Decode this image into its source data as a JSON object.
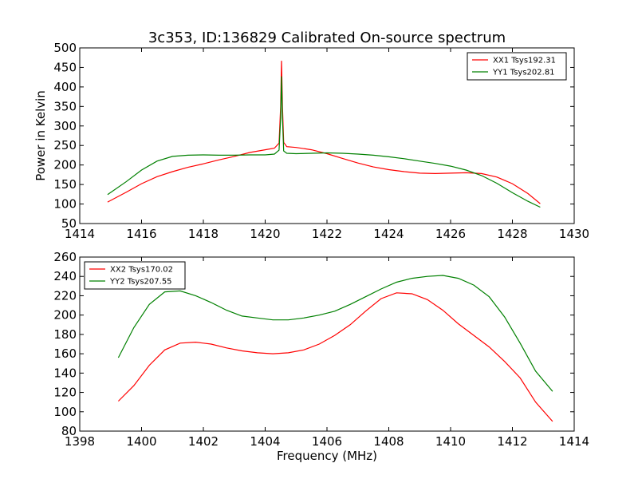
{
  "title": "3c353, ID:136829 Calibrated On-source spectrum",
  "ylabel": "Power in Kelvin",
  "xlabel": "Frequency (MHz)",
  "chart_data": [
    {
      "type": "line",
      "title": "3c353, ID:136829 Calibrated On-source spectrum",
      "xlabel": "",
      "ylabel": "Power in Kelvin",
      "xlim": [
        1414,
        1430
      ],
      "ylim": [
        50,
        500
      ],
      "xticks": [
        1414,
        1416,
        1418,
        1420,
        1422,
        1424,
        1426,
        1428,
        1430
      ],
      "yticks": [
        50,
        100,
        150,
        200,
        250,
        300,
        350,
        400,
        450,
        500
      ],
      "grid": false,
      "legend_position": "top-right",
      "series": [
        {
          "name": "XX1 Tsys192.31",
          "color": "#ff0000",
          "points": [
            [
              1414.9,
              105
            ],
            [
              1415.5,
              130
            ],
            [
              1416.0,
              152
            ],
            [
              1416.5,
              170
            ],
            [
              1417.0,
              183
            ],
            [
              1417.5,
              194
            ],
            [
              1418.0,
              203
            ],
            [
              1418.5,
              213
            ],
            [
              1419.0,
              222
            ],
            [
              1419.5,
              232
            ],
            [
              1420.0,
              239
            ],
            [
              1420.3,
              243
            ],
            [
              1420.45,
              256
            ],
            [
              1420.5,
              350
            ],
            [
              1420.53,
              467
            ],
            [
              1420.56,
              350
            ],
            [
              1420.6,
              258
            ],
            [
              1420.7,
              247
            ],
            [
              1421.0,
              245
            ],
            [
              1421.5,
              239
            ],
            [
              1422.0,
              229
            ],
            [
              1422.5,
              217
            ],
            [
              1423.0,
              205
            ],
            [
              1423.5,
              195
            ],
            [
              1424.0,
              188
            ],
            [
              1424.5,
              183
            ],
            [
              1425.0,
              179
            ],
            [
              1425.5,
              178
            ],
            [
              1426.0,
              179
            ],
            [
              1426.5,
              180
            ],
            [
              1427.0,
              178
            ],
            [
              1427.5,
              169
            ],
            [
              1428.0,
              152
            ],
            [
              1428.5,
              127
            ],
            [
              1428.9,
              101
            ]
          ]
        },
        {
          "name": "YY1 Tsys202.81",
          "color": "#008000",
          "points": [
            [
              1414.9,
              124
            ],
            [
              1415.5,
              157
            ],
            [
              1416.0,
              187
            ],
            [
              1416.5,
              210
            ],
            [
              1417.0,
              222
            ],
            [
              1417.5,
              225
            ],
            [
              1418.0,
              226
            ],
            [
              1418.5,
              225
            ],
            [
              1419.0,
              225
            ],
            [
              1419.5,
              226
            ],
            [
              1420.0,
              226
            ],
            [
              1420.3,
              228
            ],
            [
              1420.45,
              238
            ],
            [
              1420.5,
              320
            ],
            [
              1420.53,
              427
            ],
            [
              1420.56,
              320
            ],
            [
              1420.6,
              236
            ],
            [
              1420.7,
              230
            ],
            [
              1421.0,
              229
            ],
            [
              1421.5,
              230
            ],
            [
              1422.0,
              231
            ],
            [
              1422.5,
              230
            ],
            [
              1423.0,
              228
            ],
            [
              1423.5,
              225
            ],
            [
              1424.0,
              221
            ],
            [
              1424.5,
              216
            ],
            [
              1425.0,
              210
            ],
            [
              1425.5,
              204
            ],
            [
              1426.0,
              197
            ],
            [
              1426.5,
              187
            ],
            [
              1427.0,
              173
            ],
            [
              1427.5,
              153
            ],
            [
              1428.0,
              129
            ],
            [
              1428.5,
              107
            ],
            [
              1428.9,
              92
            ]
          ]
        }
      ]
    },
    {
      "type": "line",
      "title": "",
      "xlabel": "Frequency (MHz)",
      "ylabel": "",
      "xlim": [
        1398,
        1414
      ],
      "ylim": [
        80,
        260
      ],
      "xticks": [
        1398,
        1400,
        1402,
        1404,
        1406,
        1408,
        1410,
        1412,
        1414
      ],
      "yticks": [
        80,
        100,
        120,
        140,
        160,
        180,
        200,
        220,
        240,
        260
      ],
      "grid": false,
      "legend_position": "top-left",
      "series": [
        {
          "name": "XX2 Tsys170.02",
          "color": "#ff0000",
          "points": [
            [
              1399.25,
              111
            ],
            [
              1399.75,
              127
            ],
            [
              1400.25,
              148
            ],
            [
              1400.75,
              164
            ],
            [
              1401.25,
              171
            ],
            [
              1401.75,
              172
            ],
            [
              1402.25,
              170
            ],
            [
              1402.75,
              166
            ],
            [
              1403.25,
              163
            ],
            [
              1403.75,
              161
            ],
            [
              1404.25,
              160
            ],
            [
              1404.75,
              161
            ],
            [
              1405.25,
              164
            ],
            [
              1405.75,
              170
            ],
            [
              1406.25,
              179
            ],
            [
              1406.75,
              190
            ],
            [
              1407.25,
              204
            ],
            [
              1407.75,
              217
            ],
            [
              1408.25,
              223
            ],
            [
              1408.75,
              222
            ],
            [
              1409.25,
              216
            ],
            [
              1409.75,
              205
            ],
            [
              1410.25,
              191
            ],
            [
              1410.75,
              179
            ],
            [
              1411.25,
              167
            ],
            [
              1411.75,
              152
            ],
            [
              1412.25,
              135
            ],
            [
              1412.75,
              110
            ],
            [
              1413.3,
              90
            ]
          ]
        },
        {
          "name": "YY2 Tsys207.55",
          "color": "#008000",
          "points": [
            [
              1399.25,
              156
            ],
            [
              1399.75,
              187
            ],
            [
              1400.25,
              211
            ],
            [
              1400.75,
              224
            ],
            [
              1401.25,
              225
            ],
            [
              1401.75,
              220
            ],
            [
              1402.25,
              213
            ],
            [
              1402.75,
              205
            ],
            [
              1403.25,
              199
            ],
            [
              1403.75,
              197
            ],
            [
              1404.25,
              195
            ],
            [
              1404.75,
              195
            ],
            [
              1405.25,
              197
            ],
            [
              1405.75,
              200
            ],
            [
              1406.25,
              204
            ],
            [
              1406.75,
              211
            ],
            [
              1407.25,
              219
            ],
            [
              1407.75,
              227
            ],
            [
              1408.25,
              234
            ],
            [
              1408.75,
              238
            ],
            [
              1409.25,
              240
            ],
            [
              1409.75,
              241
            ],
            [
              1410.25,
              238
            ],
            [
              1410.75,
              231
            ],
            [
              1411.25,
              219
            ],
            [
              1411.75,
              198
            ],
            [
              1412.25,
              171
            ],
            [
              1412.75,
              142
            ],
            [
              1413.3,
              121
            ]
          ]
        }
      ]
    }
  ]
}
